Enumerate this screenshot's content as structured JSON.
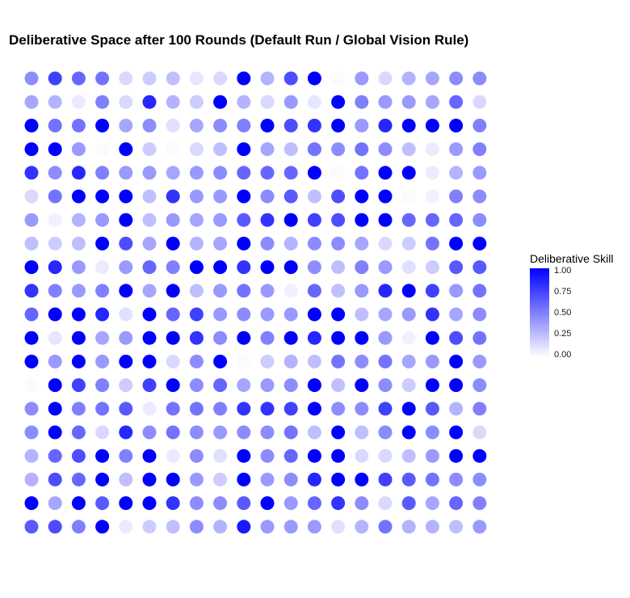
{
  "title": "Deliberative Space after 100 Rounds (Default Run / Global Vision Rule)",
  "colors": {
    "low": "#ffffff",
    "high": "#0000ff"
  },
  "chart_data": {
    "type": "heatmap",
    "title": "Deliberative Space after 100 Rounds (Default Run / Global Vision Rule)",
    "xlabel": "",
    "ylabel": "",
    "grid": false,
    "rows": 20,
    "cols": 20,
    "legend": {
      "title": "Deliberative Skill",
      "placement": "right",
      "scale": [
        0.0,
        1.0
      ],
      "ticks": [
        "1.00",
        "0.75",
        "0.50",
        "0.25",
        "0.00"
      ],
      "tick_values": [
        1.0,
        0.75,
        0.5,
        0.25,
        0.0
      ]
    },
    "values": [
      [
        0.45,
        0.75,
        0.6,
        0.55,
        0.15,
        0.2,
        0.25,
        0.1,
        0.15,
        1.0,
        0.3,
        0.7,
        1.0,
        0.02,
        0.4,
        0.15,
        0.3,
        0.35,
        0.45,
        0.45
      ],
      [
        0.35,
        0.3,
        0.08,
        0.5,
        0.15,
        0.85,
        0.3,
        0.2,
        1.0,
        0.3,
        0.15,
        0.4,
        0.1,
        1.0,
        0.5,
        0.4,
        0.4,
        0.35,
        0.6,
        0.15
      ],
      [
        1.0,
        0.55,
        0.55,
        1.0,
        0.35,
        0.45,
        0.12,
        0.35,
        0.45,
        0.5,
        1.0,
        0.7,
        0.8,
        1.0,
        0.4,
        0.85,
        1.0,
        1.0,
        1.0,
        0.5
      ],
      [
        1.0,
        1.0,
        0.4,
        0.02,
        1.0,
        0.2,
        0.02,
        0.15,
        0.25,
        1.0,
        0.35,
        0.25,
        0.55,
        0.45,
        0.55,
        0.45,
        0.25,
        0.08,
        0.4,
        0.5
      ],
      [
        0.8,
        0.45,
        0.85,
        0.5,
        0.4,
        0.4,
        0.35,
        0.4,
        0.45,
        0.6,
        0.6,
        0.6,
        1.0,
        0.02,
        0.55,
        1.0,
        1.0,
        0.08,
        0.3,
        0.4
      ],
      [
        0.15,
        0.55,
        1.0,
        1.0,
        1.0,
        0.25,
        0.8,
        0.4,
        0.4,
        1.0,
        0.45,
        0.65,
        0.25,
        0.7,
        1.0,
        1.0,
        0.02,
        0.06,
        0.5,
        0.45
      ],
      [
        0.4,
        0.06,
        0.3,
        0.4,
        1.0,
        0.25,
        0.4,
        0.35,
        0.4,
        0.65,
        0.8,
        1.0,
        0.75,
        0.7,
        1.0,
        1.0,
        0.6,
        0.6,
        0.6,
        0.45
      ],
      [
        0.25,
        0.2,
        0.25,
        1.0,
        0.7,
        0.35,
        1.0,
        0.3,
        0.35,
        1.0,
        0.45,
        0.3,
        0.45,
        0.45,
        0.35,
        0.15,
        0.2,
        0.55,
        1.0,
        1.0
      ],
      [
        1.0,
        0.85,
        0.4,
        0.08,
        0.4,
        0.6,
        0.5,
        1.0,
        1.0,
        0.8,
        1.0,
        1.0,
        0.45,
        0.25,
        0.5,
        0.4,
        0.12,
        0.2,
        0.65,
        0.65
      ],
      [
        0.8,
        0.5,
        0.4,
        0.5,
        1.0,
        0.35,
        1.0,
        0.25,
        0.4,
        0.55,
        0.4,
        0.06,
        0.6,
        0.25,
        0.4,
        0.85,
        1.0,
        0.75,
        0.4,
        0.55
      ],
      [
        0.6,
        1.0,
        1.0,
        0.85,
        0.12,
        1.0,
        0.6,
        0.75,
        0.4,
        0.45,
        0.4,
        0.4,
        1.0,
        1.0,
        0.25,
        0.35,
        0.4,
        0.8,
        0.35,
        0.45
      ],
      [
        1.0,
        0.1,
        1.0,
        0.35,
        0.4,
        1.0,
        1.0,
        0.8,
        0.45,
        1.0,
        0.5,
        1.0,
        0.85,
        1.0,
        1.0,
        0.4,
        0.06,
        1.0,
        0.7,
        0.55
      ],
      [
        1.0,
        0.4,
        1.0,
        0.4,
        1.0,
        1.0,
        0.15,
        0.45,
        1.0,
        0.02,
        0.2,
        0.3,
        0.25,
        0.55,
        0.45,
        0.55,
        0.35,
        0.4,
        1.0,
        0.4
      ],
      [
        0.02,
        1.0,
        0.75,
        0.5,
        0.2,
        0.75,
        1.0,
        0.45,
        0.6,
        0.35,
        0.4,
        0.45,
        1.0,
        0.25,
        1.0,
        0.45,
        0.2,
        1.0,
        1.0,
        0.45
      ],
      [
        0.45,
        1.0,
        0.5,
        0.55,
        0.65,
        0.08,
        0.55,
        0.55,
        0.5,
        0.8,
        0.8,
        0.75,
        1.0,
        0.45,
        0.45,
        0.75,
        1.0,
        0.65,
        0.3,
        0.5
      ],
      [
        0.45,
        1.0,
        0.6,
        0.15,
        0.85,
        0.45,
        0.55,
        0.45,
        0.4,
        0.45,
        0.45,
        0.55,
        0.25,
        1.0,
        0.25,
        0.45,
        1.0,
        0.45,
        1.0,
        0.15
      ],
      [
        0.3,
        0.6,
        0.7,
        1.0,
        0.5,
        1.0,
        0.08,
        0.45,
        0.12,
        1.0,
        0.45,
        0.6,
        1.0,
        1.0,
        0.15,
        0.15,
        0.25,
        0.4,
        1.0,
        1.0
      ],
      [
        0.3,
        0.7,
        0.6,
        1.0,
        0.25,
        1.0,
        1.0,
        0.4,
        0.2,
        1.0,
        0.4,
        0.45,
        0.85,
        1.0,
        1.0,
        0.75,
        0.65,
        0.55,
        0.45,
        0.45
      ],
      [
        1.0,
        0.35,
        1.0,
        0.65,
        1.0,
        1.0,
        0.8,
        0.45,
        0.45,
        0.65,
        1.0,
        0.4,
        0.6,
        0.8,
        0.45,
        0.15,
        0.65,
        0.35,
        0.6,
        0.5
      ],
      [
        0.65,
        0.7,
        0.5,
        1.0,
        0.08,
        0.2,
        0.25,
        0.45,
        0.3,
        0.9,
        0.4,
        0.4,
        0.4,
        0.12,
        0.3,
        0.55,
        0.3,
        0.3,
        0.25,
        0.4
      ]
    ]
  }
}
